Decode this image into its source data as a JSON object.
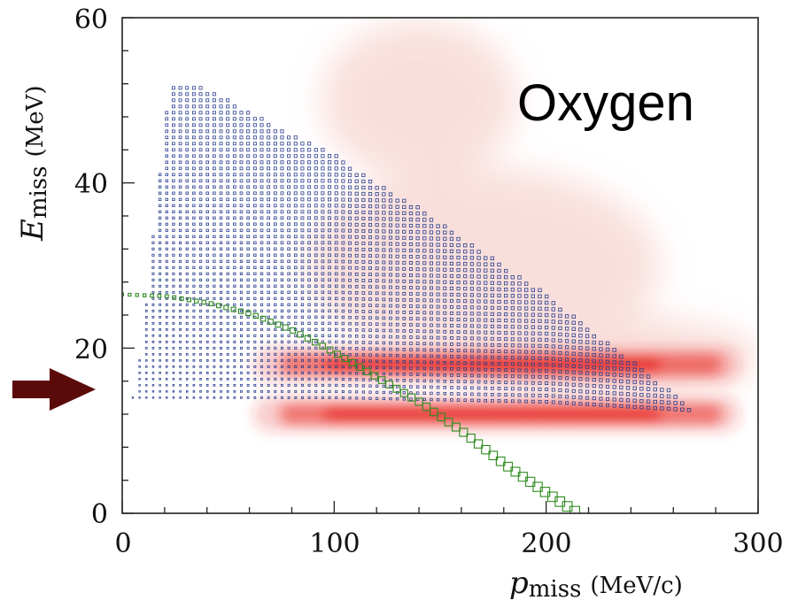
{
  "chart_data": {
    "type": "heatmap",
    "annotation": "Oxygen",
    "xlabel": {
      "symbol": "p",
      "sub": "miss",
      "unit": "(MeV/c)"
    },
    "ylabel": {
      "symbol": "E",
      "sub": "miss",
      "unit": "(MeV)"
    },
    "xlim": [
      0,
      300
    ],
    "ylim": [
      0,
      60
    ],
    "x_ticks": [
      "0",
      "100",
      "200",
      "300"
    ],
    "y_ticks": [
      "0",
      "20",
      "40",
      "60"
    ],
    "arrow_marker": {
      "y": 15,
      "color": "#5b0a0a"
    },
    "colors": {
      "red_bands": "#e8251f",
      "blue_region": "#2b3f8f",
      "green_curve": "#2e8b1e",
      "faint_pink": "#f4c6c0"
    },
    "red_bands": [
      {
        "e_center": 18,
        "p_range": [
          45,
          300
        ]
      },
      {
        "e_center": 12,
        "p_range": [
          45,
          300
        ]
      }
    ],
    "blue_region": {
      "upper_boundary": [
        [
          22,
          51.5
        ],
        [
          40,
          51.5
        ],
        [
          60,
          48.5
        ],
        [
          80,
          46
        ],
        [
          100,
          43.5
        ],
        [
          120,
          40
        ],
        [
          140,
          37
        ],
        [
          160,
          33.5
        ],
        [
          180,
          30
        ],
        [
          200,
          26.5
        ],
        [
          220,
          22.5
        ],
        [
          240,
          18.5
        ],
        [
          255,
          15.5
        ],
        [
          268,
          13
        ]
      ],
      "lower_boundary": [
        [
          5,
          14
        ],
        [
          20,
          14
        ],
        [
          100,
          14
        ],
        [
          200,
          13.5
        ],
        [
          268,
          12.5
        ]
      ],
      "left_boundary": [
        [
          5,
          14
        ],
        [
          10,
          22
        ],
        [
          15,
          35
        ],
        [
          22,
          51.5
        ]
      ]
    },
    "green_curve": [
      [
        0,
        26.5
      ],
      [
        20,
        26.3
      ],
      [
        40,
        25.5
      ],
      [
        60,
        24.2
      ],
      [
        80,
        22.2
      ],
      [
        100,
        19.5
      ],
      [
        120,
        16.5
      ],
      [
        140,
        13.5
      ],
      [
        160,
        10
      ],
      [
        180,
        6
      ],
      [
        200,
        2.5
      ],
      [
        215,
        0
      ]
    ]
  }
}
